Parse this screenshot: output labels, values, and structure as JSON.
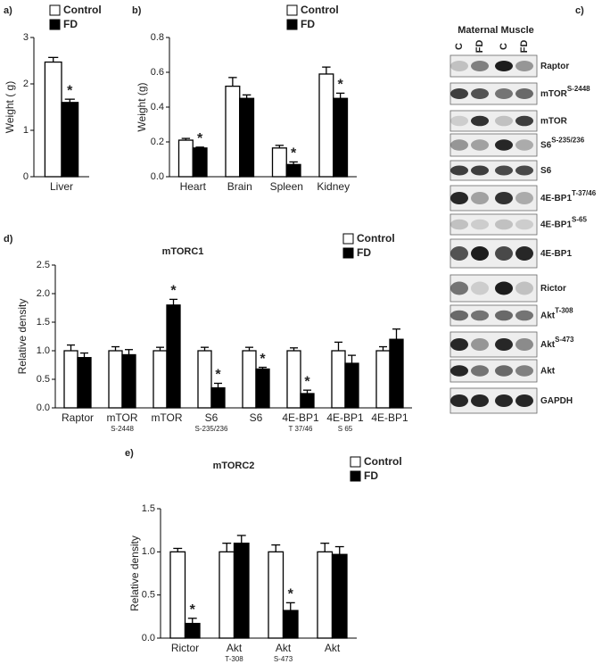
{
  "chart_data": [
    {
      "type": "bar",
      "panel_label": "a)",
      "y_label": "Weight ( g)",
      "categories": [
        "Liver"
      ],
      "series": [
        {
          "name": "Control",
          "color": "#ffffff",
          "values": [
            2.47
          ],
          "errors": [
            0.1
          ],
          "annotations": [
            null
          ]
        },
        {
          "name": "FD",
          "color": "#000000",
          "values": [
            1.6
          ],
          "errors": [
            0.07
          ],
          "annotations": [
            "*"
          ]
        }
      ],
      "ylim": [
        0,
        3
      ],
      "yticks": [
        0,
        1,
        2,
        3
      ]
    },
    {
      "type": "bar",
      "panel_label": "b)",
      "y_label": "Weight (g)",
      "categories": [
        "Heart",
        "Brain",
        "Spleen",
        "Kidney"
      ],
      "series": [
        {
          "name": "Control",
          "color": "#ffffff",
          "values": [
            0.21,
            0.52,
            0.165,
            0.59
          ],
          "errors": [
            0.01,
            0.05,
            0.015,
            0.04
          ],
          "annotations": [
            null,
            null,
            null,
            null
          ]
        },
        {
          "name": "FD",
          "color": "#000000",
          "values": [
            0.165,
            0.45,
            0.07,
            0.45
          ],
          "errors": [
            0.005,
            0.02,
            0.015,
            0.03
          ],
          "annotations": [
            "*",
            null,
            "*",
            "*"
          ]
        }
      ],
      "ylim": [
        0,
        0.8
      ],
      "yticks": [
        {
          "value": 0,
          "label": "0.0"
        },
        0.2,
        0.4,
        0.6,
        0.8
      ]
    },
    {
      "type": "bar",
      "panel_label": "d)",
      "title": "mTORC1",
      "y_label": "Relative density",
      "categories": [
        "Raptor",
        "mTOR",
        "mTOR",
        "S6",
        "S6",
        "4E-BP1",
        "4E-BP1",
        "4E-BP1"
      ],
      "sublabels": [
        null,
        "S-2448",
        null,
        "S-235/236",
        null,
        "T 37/46",
        "S 65",
        null
      ],
      "series": [
        {
          "name": "Control",
          "color": "#ffffff",
          "values": [
            1.0,
            1.0,
            1.0,
            1.0,
            1.0,
            1.0,
            1.0,
            1.0
          ],
          "errors": [
            0.1,
            0.07,
            0.06,
            0.06,
            0.06,
            0.05,
            0.15,
            0.07
          ],
          "annotations": [
            null,
            null,
            null,
            null,
            null,
            null,
            null,
            null
          ]
        },
        {
          "name": "FD",
          "color": "#000000",
          "values": [
            0.88,
            0.93,
            1.8,
            0.35,
            0.68,
            0.25,
            0.78,
            1.2
          ],
          "errors": [
            0.08,
            0.09,
            0.1,
            0.08,
            0.03,
            0.06,
            0.14,
            0.18
          ],
          "annotations": [
            null,
            null,
            "*",
            "*",
            "*",
            "*",
            null,
            null
          ]
        }
      ],
      "ylim": [
        0,
        2.5
      ],
      "yticks": [
        {
          "value": 0,
          "label": "0.0"
        },
        0.5,
        {
          "value": 1,
          "label": "1.0"
        },
        1.5,
        {
          "value": 2,
          "label": "2.0"
        },
        2.5
      ]
    },
    {
      "type": "bar",
      "panel_label": "e)",
      "title": "mTORC2",
      "y_label": "Relative density",
      "categories": [
        "Rictor",
        "Akt",
        "Akt",
        "Akt"
      ],
      "sublabels": [
        null,
        "T-308",
        "S-473",
        null
      ],
      "series": [
        {
          "name": "Control",
          "color": "#ffffff",
          "values": [
            1.0,
            1.0,
            1.0,
            1.0
          ],
          "errors": [
            0.04,
            0.1,
            0.08,
            0.1
          ],
          "annotations": [
            null,
            null,
            null,
            null
          ]
        },
        {
          "name": "FD",
          "color": "#000000",
          "values": [
            0.17,
            1.1,
            0.32,
            0.97
          ],
          "errors": [
            0.06,
            0.09,
            0.09,
            0.09
          ],
          "annotations": [
            "*",
            null,
            "*",
            null
          ]
        }
      ],
      "ylim": [
        0,
        1.5
      ],
      "yticks": [
        {
          "value": 0,
          "label": "0.0"
        },
        0.5,
        {
          "value": 1,
          "label": "1.0"
        },
        1.5
      ]
    }
  ],
  "panel_c": {
    "label": "c)",
    "header": "Maternal Muscle",
    "lanes": [
      "C",
      "FD",
      "C",
      "FD"
    ],
    "rows": [
      {
        "name": "Raptor"
      },
      {
        "name": "mTOR",
        "site": "S-2448"
      },
      {
        "name": "mTOR"
      },
      {
        "name": "S6",
        "site": "S-235/236"
      },
      {
        "name": "S6"
      },
      {
        "name": "4E-BP1",
        "site": "T-37/46"
      },
      {
        "name": "4E-BP1",
        "site": "S-65"
      },
      {
        "name": "4E-BP1"
      },
      {
        "name": "Rictor"
      },
      {
        "name": "Akt",
        "site": "T-308"
      },
      {
        "name": "Akt",
        "site": "S-473"
      },
      {
        "name": "Akt"
      },
      {
        "name": "GAPDH"
      }
    ]
  }
}
